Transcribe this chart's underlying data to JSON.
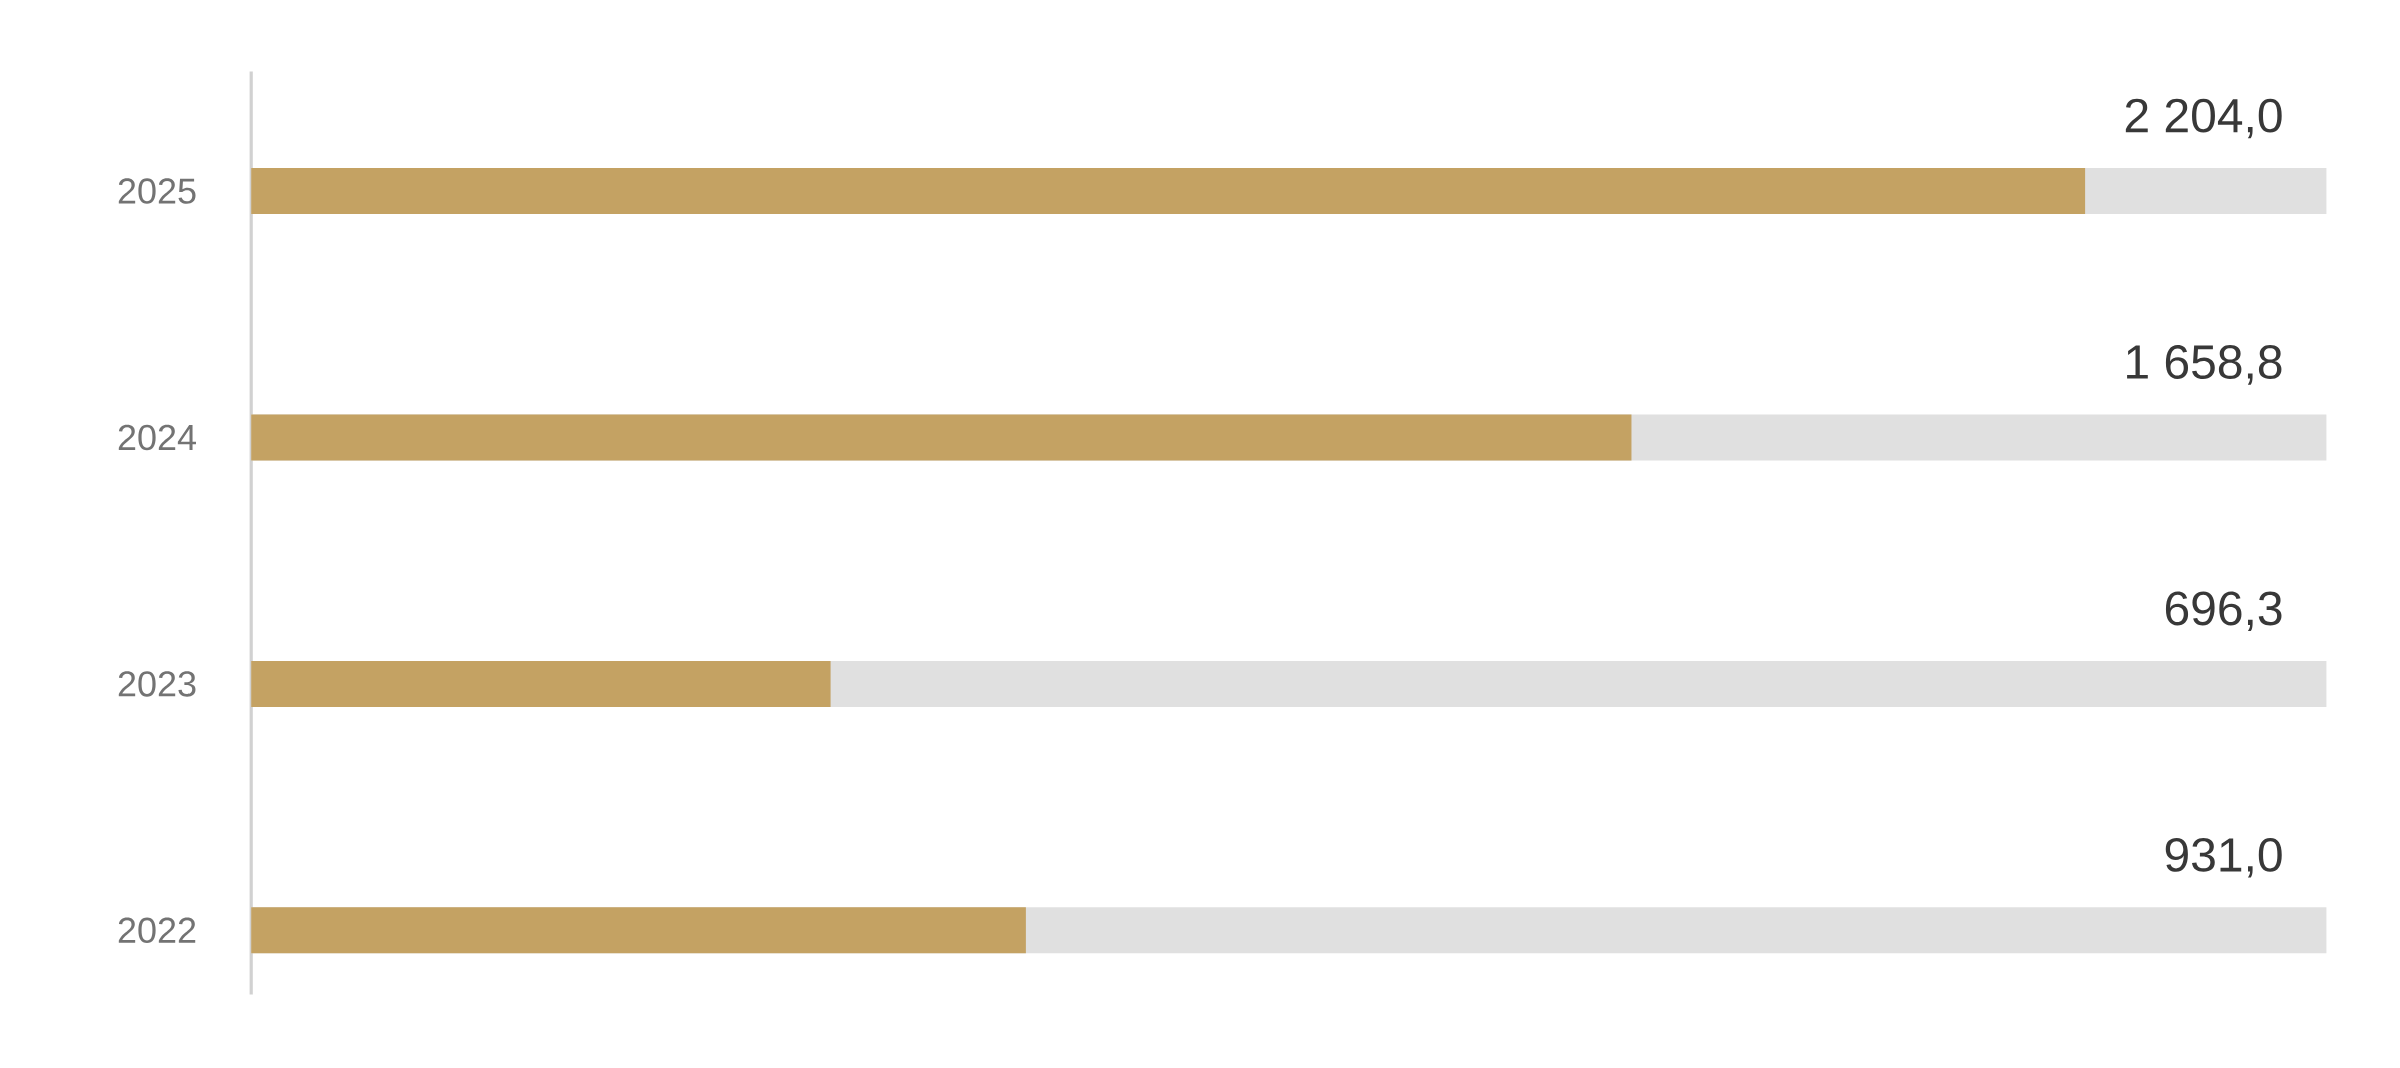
{
  "chart_data": {
    "type": "bar",
    "orientation": "horizontal",
    "categories": [
      "2025",
      "2024",
      "2023",
      "2022"
    ],
    "values": [
      2204.0,
      1658.8,
      696.3,
      931.0
    ],
    "color": "#c4a263",
    "value_labels": [
      "2 204,0",
      "1 658,8",
      "696,3",
      "931,0"
    ],
    "xlim": [
      0,
      2494
    ],
    "tick_labels": "y"
  }
}
